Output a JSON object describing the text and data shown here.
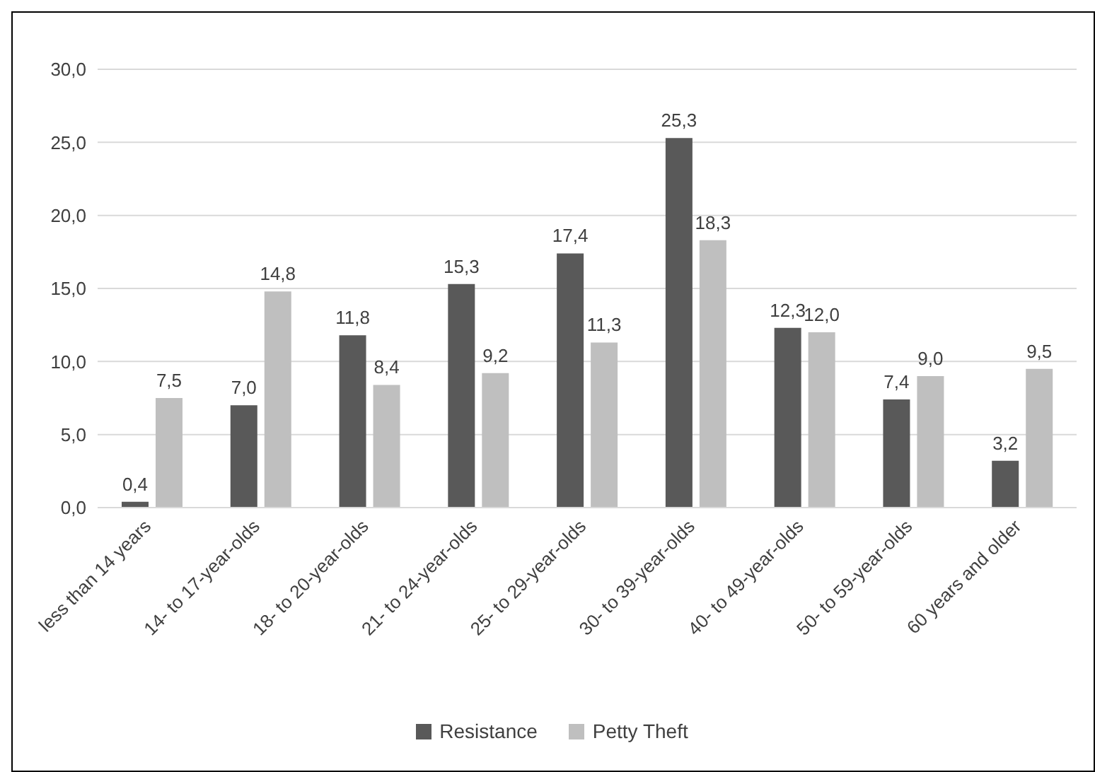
{
  "chart_data": {
    "type": "bar",
    "categories": [
      "less than 14 years",
      "14- to 17-year-olds",
      "18- to 20-year-olds",
      "21- to 24-year-olds",
      "25- to 29-year-olds",
      "30- to 39-year-olds",
      "40- to 49-year-olds",
      "50- to 59-year-olds",
      "60 years and older"
    ],
    "series": [
      {
        "name": "Resistance",
        "color": "#595959",
        "values": [
          0.4,
          7.0,
          11.8,
          15.3,
          17.4,
          25.3,
          12.3,
          7.4,
          3.2
        ],
        "value_labels": [
          "0,4",
          "7,0",
          "11,8",
          "15,3",
          "17,4",
          "25,3",
          "12,3",
          "7,4",
          "3,2"
        ]
      },
      {
        "name": "Petty Theft",
        "color": "#bfbfbf",
        "values": [
          7.5,
          14.8,
          8.4,
          9.2,
          11.3,
          18.3,
          12.0,
          9.0,
          9.5
        ],
        "value_labels": [
          "7,5",
          "14,8",
          "8,4",
          "9,2",
          "11,3",
          "18,3",
          "12,0",
          "9,0",
          "9,5"
        ]
      }
    ],
    "ylim": [
      0,
      30
    ],
    "yticks": [
      {
        "value": 0,
        "label": "0,0"
      },
      {
        "value": 5,
        "label": "5,0"
      },
      {
        "value": 10,
        "label": "10,0"
      },
      {
        "value": 15,
        "label": "15,0"
      },
      {
        "value": 20,
        "label": "20,0"
      },
      {
        "value": 25,
        "label": "25,0"
      },
      {
        "value": 30,
        "label": "30,0"
      }
    ],
    "grid": "y",
    "legend": "bottom"
  }
}
